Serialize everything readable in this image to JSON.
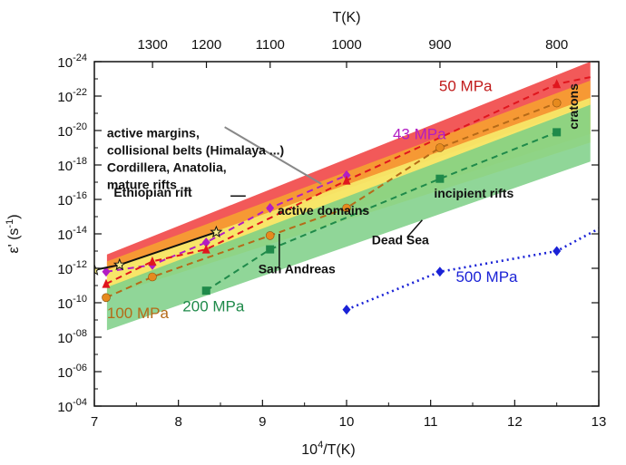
{
  "chart_data": {
    "type": "line",
    "x_axis": {
      "label_main": "10",
      "label_sup": "4",
      "label_rest": "/T(K)",
      "range": [
        7,
        13
      ],
      "ticks": [
        "7",
        "8",
        "9",
        "10",
        "11",
        "12",
        "13"
      ]
    },
    "top_axis": {
      "label": "T(K)",
      "ticks": [
        {
          "x": 7.692,
          "label": "1300"
        },
        {
          "x": 8.333,
          "label": "1200"
        },
        {
          "x": 9.091,
          "label": "1100"
        },
        {
          "x": 10.0,
          "label": "1000"
        },
        {
          "x": 11.111,
          "label": "900"
        },
        {
          "x": 12.5,
          "label": "800"
        }
      ]
    },
    "y_axis": {
      "label_main": "ε' (s",
      "label_sup": "-1",
      "label_close": ")",
      "scale": "log",
      "range_exp": [
        -24,
        -4
      ],
      "tick_exponents": [
        -4,
        -6,
        -8,
        -10,
        -12,
        -14,
        -16,
        -18,
        -20,
        -22,
        -24
      ],
      "tick_base": "10",
      "tick_sup": [
        "-04",
        "-06",
        "-08",
        "-10",
        "-12",
        "-14",
        "-16",
        "-18",
        "-20",
        "-22",
        "-24"
      ]
    },
    "bands": [
      {
        "name": "50 MPa",
        "color": "#f03c3c",
        "x": [
          7.15,
          12.9
        ],
        "upper_exp": [
          -11.8,
          -21.5
        ],
        "lower_exp": [
          -12.8,
          -24.0
        ]
      },
      {
        "name": "orange",
        "color": "#f7a52e",
        "x": [
          7.15,
          12.9
        ],
        "upper_exp": [
          -10.9,
          -19.8
        ],
        "lower_exp": [
          -12.4,
          -22.9
        ]
      },
      {
        "name": "yellow",
        "color": "#f7ef6e",
        "x": [
          7.15,
          12.9
        ],
        "upper_exp": [
          -10.4,
          -19.3
        ],
        "lower_exp": [
          -11.9,
          -21.9
        ]
      },
      {
        "name": "200 MPa",
        "color": "#7ccf86",
        "x": [
          7.15,
          12.9
        ],
        "upper_exp": [
          -8.4,
          -18.2
        ],
        "lower_exp": [
          -10.9,
          -21.5
        ]
      }
    ],
    "series": [
      {
        "name": "500 MPa",
        "color": "#1a22d6",
        "style": "dotted",
        "x": [
          10.0,
          11.11,
          12.5,
          13.0
        ],
        "y_exp": [
          -9.6,
          -11.8,
          -13.0,
          -14.3
        ],
        "marker": "diamond",
        "marker_points": 3
      },
      {
        "name": "200 MPa",
        "color": "#1f8a4a",
        "style": "dashed",
        "x": [
          8.33,
          9.09,
          11.11,
          12.5
        ],
        "y_exp": [
          -10.7,
          -13.1,
          -17.2,
          -19.9
        ],
        "marker": "square",
        "marker_points": 4
      },
      {
        "name": "100 MPa",
        "color": "#b56a18",
        "style": "dashed",
        "x": [
          7.14,
          7.69,
          9.09,
          10.0,
          11.11,
          12.5
        ],
        "y_exp": [
          -10.3,
          -11.5,
          -13.9,
          -15.5,
          -19.0,
          -21.6
        ],
        "marker": "circle",
        "marker_points": 6
      },
      {
        "name": "43 MPa",
        "color": "#b21dc4",
        "style": "dashed",
        "x": [
          7.14,
          7.69,
          8.33,
          9.09,
          10.0
        ],
        "y_exp": [
          -11.8,
          -12.2,
          -13.5,
          -15.5,
          -17.4
        ],
        "marker": "diamond",
        "marker_points": 5
      },
      {
        "name": "50 MPa",
        "color": "#e0161e",
        "style": "dashed",
        "x": [
          7.14,
          7.69,
          8.33,
          10.0,
          12.5,
          12.9
        ],
        "y_exp": [
          -11.1,
          -12.4,
          -13.1,
          -17.1,
          -22.7,
          -23.1
        ],
        "marker": "triangle",
        "marker_points": 5
      },
      {
        "name": "Ethiopian rift",
        "color": "#111111",
        "style": "solid",
        "x": [
          7.0,
          7.3,
          8.45
        ],
        "y_exp": [
          -11.9,
          -12.2,
          -14.1
        ],
        "marker": "star",
        "marker_points": 3
      }
    ],
    "region_boxes": [
      {
        "label": "active domains",
        "x": [
          8.75,
          10.9
        ],
        "y_exp": [
          -14.3,
          -16.7
        ],
        "fill": "#9a9a9a"
      },
      {
        "label": "incipient rifts",
        "x": [
          11.0,
          12.0
        ],
        "y_exp": [
          -15.2,
          -16.6
        ],
        "fill": "#9a9a9a"
      },
      {
        "label": "cratons",
        "x": [
          12.5,
          13.0
        ],
        "y_exp": [
          -19.3,
          -23.7
        ],
        "fill": "#9a9a9a"
      }
    ],
    "open_boxes": [
      {
        "label": "Ethiopian rift",
        "x": [
          8.8,
          9.6
        ],
        "y_exp": [
          -15.8,
          -16.6
        ]
      },
      {
        "label": "San Andreas",
        "x": [
          9.15,
          9.25
        ],
        "y_exp": [
          -14.0,
          -14.4
        ]
      },
      {
        "label": "Dead Sea",
        "x": [
          10.85,
          10.95
        ],
        "y_exp": [
          -14.8,
          -15.2
        ]
      }
    ],
    "annotations": [
      {
        "text": "100 MPa",
        "color": "#b56a18",
        "x": 7.15,
        "y_exp": -9.1,
        "size": 17
      },
      {
        "text": "200 MPa",
        "color": "#1f8a4a",
        "x": 8.05,
        "y_exp": -9.5,
        "size": 17
      },
      {
        "text": "500 MPa",
        "color": "#1a22d6",
        "x": 11.3,
        "y_exp": -11.2,
        "size": 17
      },
      {
        "text": "43 MPa",
        "color": "#b21dc4",
        "x": 10.55,
        "y_exp": -19.5,
        "size": 17
      },
      {
        "text": "50 MPa",
        "color": "#c11c1c",
        "x": 11.1,
        "y_exp": -22.3,
        "size": 17
      },
      {
        "text": "San Andreas",
        "color": "#111111",
        "x": 8.95,
        "y_exp": -11.7,
        "size": 14
      },
      {
        "text": "Dead Sea",
        "color": "#111111",
        "x": 10.3,
        "y_exp": -13.4,
        "size": 14
      },
      {
        "text": "Ethiopian rift",
        "color": "#111111",
        "x": 7.23,
        "y_exp": -16.15,
        "size": 14
      },
      {
        "text": "active domains",
        "color": "#111111",
        "x": 9.18,
        "y_exp": -15.1,
        "size": 14
      },
      {
        "text": "incipient rifts",
        "color": "#111111",
        "x": 11.04,
        "y_exp": -16.1,
        "size": 14
      }
    ],
    "note_lines": [
      "active margins,",
      "collisional belts (Himalaya ...)",
      "Cordillera, Anatolia,",
      "mature rifts ..."
    ],
    "cratons_label": "cratons"
  }
}
